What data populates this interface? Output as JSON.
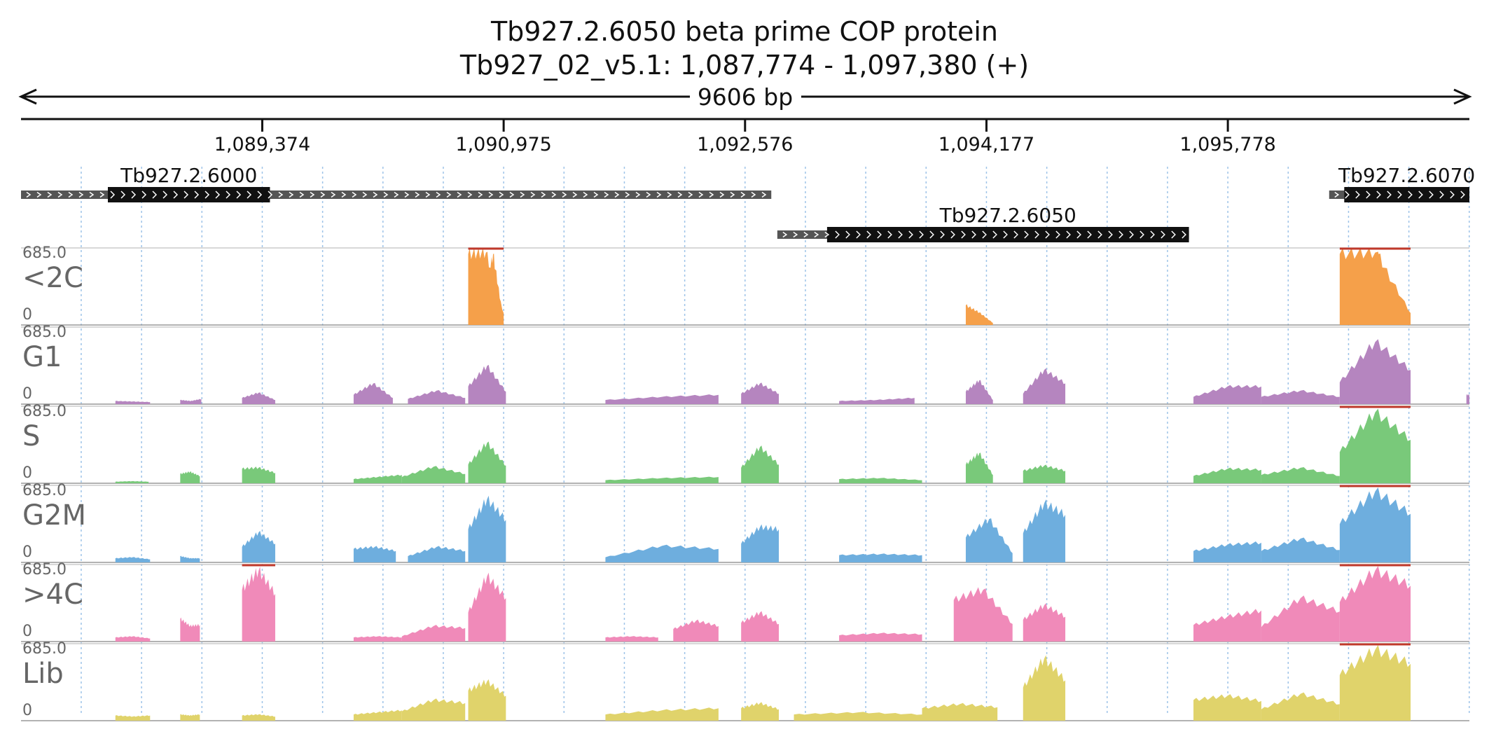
{
  "header": {
    "title": "Tb927.2.6050  beta prime COP protein",
    "location": "Tb927_02_v5.1: 1,087,774 - 1,097,380 (+)",
    "span_label": "9606 bp"
  },
  "chart_data": {
    "type": "area",
    "xlim": [
      1087774,
      1097380
    ],
    "x_ticks": [
      1089374,
      1090975,
      1092576,
      1094177,
      1095778
    ],
    "x_tick_labels": [
      "1,089,374",
      "1,090,975",
      "1,092,576",
      "1,094,177",
      "1,095,778"
    ],
    "grid": true,
    "genes": [
      {
        "name": "Tb927.2.6000",
        "row": 0,
        "start": 1087774,
        "end": 1092750,
        "cds_start": 1088350,
        "cds_end": 1089425
      },
      {
        "name": "Tb927.2.6050",
        "row": 1,
        "start": 1092790,
        "end": 1095520,
        "cds_start": 1093120,
        "cds_end": 1095520
      },
      {
        "name": "Tb927.2.6070",
        "row": 0,
        "start": 1096450,
        "end": 1097380,
        "cds_start": 1096550,
        "cds_end": 1097400
      }
    ],
    "tracks": [
      {
        "name": "<2C",
        "color": "#f5a04a",
        "ymin": 0,
        "ymax": 685.0,
        "ymax_label": "685.0",
        "ymin_label": "0",
        "segments": [
          [
            1090740,
            1090975,
            685,
            700,
            115
          ],
          [
            1090840,
            1090970,
            200,
            685,
            80
          ],
          [
            1094040,
            1094220,
            190,
            120,
            20
          ],
          [
            1096520,
            1096990,
            685,
            700,
            115
          ],
          [
            1096600,
            1096950,
            200,
            685,
            80
          ]
        ]
      },
      {
        "name": "G1",
        "color": "#b585bf",
        "ymin": 0,
        "ymax": 685.0,
        "ymax_label": "685.0",
        "ymin_label": "0",
        "segments": [
          [
            1088400,
            1088630,
            30,
            25,
            20
          ],
          [
            1088830,
            1088970,
            40,
            30,
            50
          ],
          [
            1089240,
            1089460,
            60,
            110,
            40
          ],
          [
            1089980,
            1090240,
            90,
            200,
            60
          ],
          [
            1090340,
            1090720,
            50,
            130,
            60
          ],
          [
            1090740,
            1090990,
            170,
            370,
            120
          ],
          [
            1091650,
            1092400,
            40,
            70,
            90
          ],
          [
            1092550,
            1092800,
            100,
            200,
            100
          ],
          [
            1093200,
            1093700,
            30,
            40,
            60
          ],
          [
            1094040,
            1094220,
            120,
            230,
            40
          ],
          [
            1094420,
            1094700,
            100,
            330,
            200
          ],
          [
            1095550,
            1096000,
            70,
            170,
            170
          ],
          [
            1096000,
            1096520,
            70,
            130,
            70
          ],
          [
            1096520,
            1096990,
            210,
            600,
            330
          ],
          [
            1097360,
            1097380,
            90,
            90,
            90
          ]
        ]
      },
      {
        "name": "S",
        "color": "#79c97a",
        "ymin": 0,
        "ymax": 685.0,
        "ymax_label": "685.0",
        "ymin_label": "0",
        "segments": [
          [
            1088400,
            1088620,
            15,
            20,
            15
          ],
          [
            1088830,
            1088960,
            90,
            110,
            70
          ],
          [
            1089240,
            1089460,
            140,
            150,
            100
          ],
          [
            1089980,
            1090300,
            40,
            60,
            80
          ],
          [
            1090300,
            1090720,
            60,
            160,
            90
          ],
          [
            1090740,
            1090990,
            180,
            390,
            170
          ],
          [
            1091650,
            1092400,
            30,
            50,
            60
          ],
          [
            1092550,
            1092800,
            150,
            350,
            180
          ],
          [
            1093200,
            1093750,
            40,
            50,
            30
          ],
          [
            1094040,
            1094220,
            180,
            290,
            80
          ],
          [
            1094420,
            1094700,
            120,
            170,
            120
          ],
          [
            1095550,
            1096000,
            70,
            140,
            130
          ],
          [
            1096000,
            1096520,
            80,
            150,
            70
          ],
          [
            1096520,
            1096990,
            300,
            685,
            420
          ]
        ]
      },
      {
        "name": "G2M",
        "color": "#6eaede",
        "ymin": 0,
        "ymax": 685.0,
        "ymax_label": "685.0",
        "ymin_label": "0",
        "segments": [
          [
            1088400,
            1088630,
            40,
            50,
            30
          ],
          [
            1088830,
            1088960,
            60,
            40,
            40
          ],
          [
            1089240,
            1089460,
            150,
            290,
            180
          ],
          [
            1089980,
            1090260,
            130,
            150,
            110
          ],
          [
            1090340,
            1090720,
            60,
            150,
            110
          ],
          [
            1090740,
            1090990,
            320,
            610,
            410
          ],
          [
            1091650,
            1092400,
            50,
            160,
            130
          ],
          [
            1092550,
            1092800,
            180,
            340,
            320
          ],
          [
            1093200,
            1093750,
            70,
            80,
            70
          ],
          [
            1094040,
            1094350,
            240,
            420,
            90
          ],
          [
            1094420,
            1094700,
            280,
            570,
            460
          ],
          [
            1095550,
            1096000,
            110,
            170,
            190
          ],
          [
            1096000,
            1096520,
            110,
            230,
            120
          ],
          [
            1096520,
            1096990,
            370,
            685,
            470
          ]
        ]
      },
      {
        "name": ">4C",
        "color": "#f08ab9",
        "ymin": 0,
        "ymax": 685.0,
        "ymax_label": "685.0",
        "ymin_label": "0",
        "segments": [
          [
            1088400,
            1088630,
            40,
            50,
            30
          ],
          [
            1088830,
            1088960,
            220,
            150,
            160
          ],
          [
            1089240,
            1089460,
            500,
            685,
            460
          ],
          [
            1089980,
            1090300,
            40,
            50,
            40
          ],
          [
            1090300,
            1090720,
            50,
            150,
            130
          ],
          [
            1090740,
            1090990,
            280,
            630,
            420
          ],
          [
            1091650,
            1092000,
            40,
            50,
            40
          ],
          [
            1092100,
            1092400,
            120,
            200,
            150
          ],
          [
            1092550,
            1092800,
            180,
            280,
            170
          ],
          [
            1093200,
            1093750,
            60,
            80,
            70
          ],
          [
            1093960,
            1094350,
            400,
            500,
            170
          ],
          [
            1094420,
            1094700,
            210,
            350,
            240
          ],
          [
            1095550,
            1096000,
            160,
            240,
            300
          ],
          [
            1096000,
            1096520,
            140,
            420,
            290
          ],
          [
            1096520,
            1096990,
            380,
            685,
            540
          ]
        ]
      },
      {
        "name": "Lib",
        "color": "#e0d36b",
        "ymin": 0,
        "ymax": 685.0,
        "ymax_label": "685.0",
        "ymin_label": "0",
        "segments": [
          [
            1088400,
            1088630,
            50,
            40,
            50
          ],
          [
            1088830,
            1088960,
            60,
            50,
            60
          ],
          [
            1089240,
            1089460,
            50,
            60,
            40
          ],
          [
            1089980,
            1090300,
            60,
            80,
            100
          ],
          [
            1090300,
            1090720,
            90,
            200,
            170
          ],
          [
            1090740,
            1090990,
            290,
            380,
            240
          ],
          [
            1091650,
            1092400,
            60,
            100,
            120
          ],
          [
            1092550,
            1092800,
            120,
            170,
            110
          ],
          [
            1092900,
            1093750,
            60,
            80,
            60
          ],
          [
            1093750,
            1094250,
            120,
            160,
            130
          ],
          [
            1094420,
            1094700,
            320,
            600,
            390
          ],
          [
            1095550,
            1096000,
            200,
            240,
            190
          ],
          [
            1096000,
            1096520,
            110,
            260,
            160
          ],
          [
            1096520,
            1096990,
            440,
            685,
            550
          ]
        ]
      }
    ]
  }
}
